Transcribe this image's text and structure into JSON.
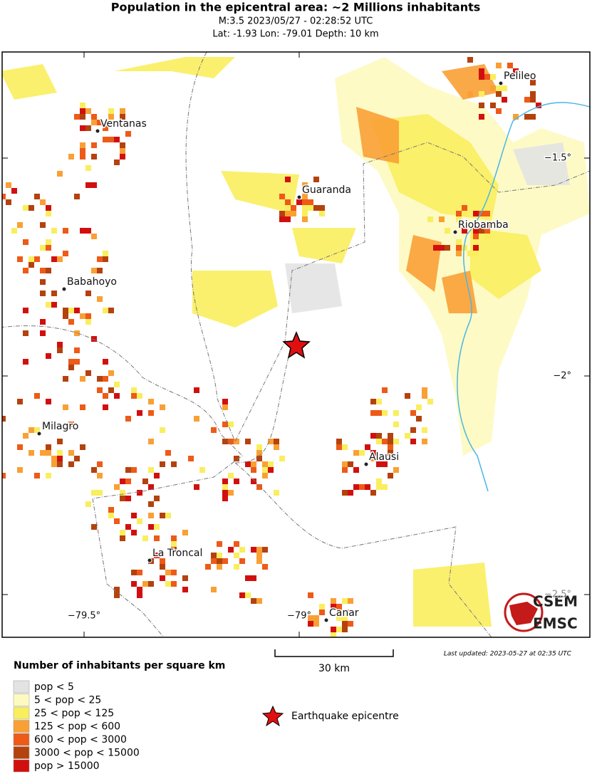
{
  "header": {
    "title": "Population in the epicentral area: ~2 Millions inhabitants",
    "subtitle": "M:3.5 2023/05/27 - 02:28:52 UTC",
    "location": "Lat: -1.93 Lon: -79.01 Depth: 10 km"
  },
  "map": {
    "cities": [
      "Pelileo",
      "Ventanas",
      "Guaranda",
      "Riobamba",
      "Babahoyo",
      "Milagro",
      "Alausi",
      "La Troncal",
      "Canar"
    ],
    "lat_labels": [
      "−1.5°",
      "−2°",
      "−2.5°"
    ],
    "lon_labels": [
      "−79.5°",
      "−79°"
    ]
  },
  "scale": {
    "label": "30 km"
  },
  "updated": "Last updated: 2023-05-27 at 02:35 UTC",
  "logo": {
    "top": "CSEM",
    "bottom": "EMSC"
  },
  "legend": {
    "title": "Number of inhabitants per square km",
    "items": [
      {
        "label": "pop < 5",
        "color": "#e3e3e3"
      },
      {
        "label": "5 < pop < 25",
        "color": "#fdfac0"
      },
      {
        "label": "25 < pop < 125",
        "color": "#f9ee5e"
      },
      {
        "label": "125 < pop < 600",
        "color": "#f9a035"
      },
      {
        "label": "600 < pop < 3000",
        "color": "#ee5a18"
      },
      {
        "label": "3000 < pop < 15000",
        "color": "#b4420e"
      },
      {
        "label": "pop > 15000",
        "color": "#d20f0f"
      }
    ],
    "epicentre": "Earthquake epicentre"
  }
}
